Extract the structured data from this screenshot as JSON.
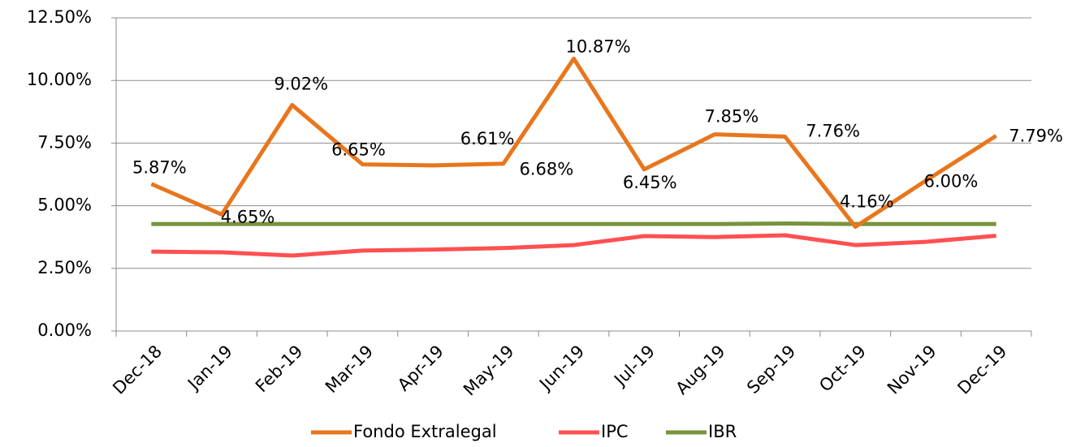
{
  "chart_data": {
    "type": "line",
    "categories": [
      "Dec-18",
      "Jan-19",
      "Feb-19",
      "Mar-19",
      "Apr-19",
      "May-19",
      "Jun-19",
      "Jul-19",
      "Aug-19",
      "Sep-19",
      "Oct-19",
      "Nov-19",
      "Dec-19"
    ],
    "series": [
      {
        "name": "Fondo Extralegal",
        "color": "#e8761d",
        "values": [
          5.87,
          4.65,
          9.02,
          6.65,
          6.61,
          6.68,
          10.87,
          6.45,
          7.85,
          7.76,
          4.16,
          6.0,
          7.79
        ],
        "value_labels": [
          "5.87%",
          "4.65%",
          "9.02%",
          "6.65%",
          "6.61%",
          "6.68%",
          "10.87%",
          "6.45%",
          "7.85%",
          "7.76%",
          "4.16%",
          "6.00%",
          "7.79%"
        ]
      },
      {
        "name": "IPC",
        "color": "#ff5050",
        "values": [
          3.17,
          3.14,
          3.01,
          3.21,
          3.25,
          3.31,
          3.43,
          3.79,
          3.75,
          3.82,
          3.43,
          3.56,
          3.8
        ]
      },
      {
        "name": "IBR",
        "color": "#77933c",
        "values": [
          4.27,
          4.27,
          4.27,
          4.27,
          4.27,
          4.27,
          4.27,
          4.27,
          4.27,
          4.29,
          4.27,
          4.27,
          4.27
        ]
      }
    ],
    "ylim": [
      0,
      12.5
    ],
    "yticks": [
      {
        "value": 0,
        "label": "0.00%"
      },
      {
        "value": 2.5,
        "label": "2.50%"
      },
      {
        "value": 5,
        "label": "5.00%"
      },
      {
        "value": 7.5,
        "label": "7.50%"
      },
      {
        "value": 10,
        "label": "10.00%"
      },
      {
        "value": 12.5,
        "label": "12.50%"
      }
    ],
    "grid": true,
    "legend": "bottom"
  }
}
